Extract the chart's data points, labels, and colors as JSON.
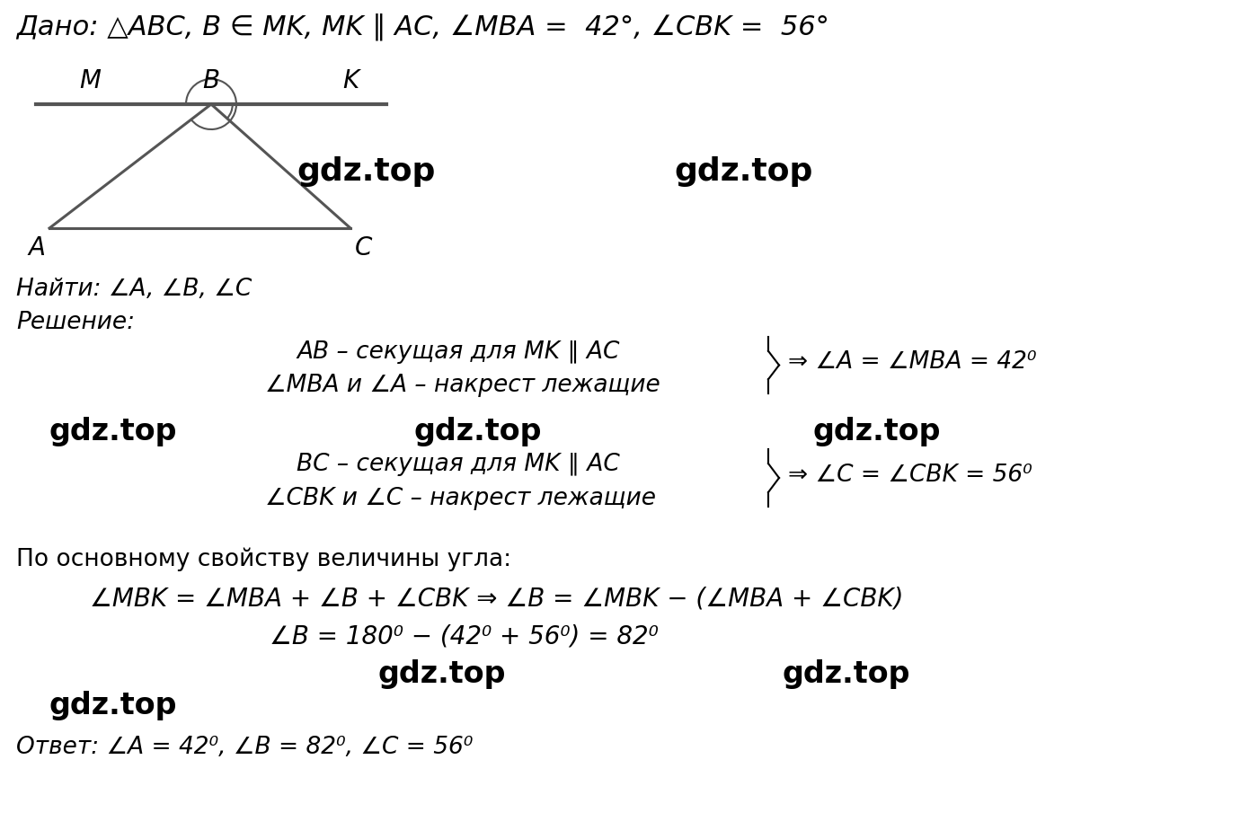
{
  "bg_color": "#ffffff",
  "title_dado": "Дано: △ABC, B ∈ MK, MK ∥ AC, ∠MBA =  42°, ∠CBK =  56°",
  "najti": "Найти: ∠A, ∠B, ∠C",
  "reshenie_label": "Решение:",
  "line1_part1": "AB – секущая для MK ∥ AC",
  "line1_part2": "∠MBA и ∠A – накрест лежащие",
  "line1_result": "⇒ ∠A = ∠MBA = 42⁰",
  "line2_part1": "BC – секущая для MK ∥ AC",
  "line2_part2": "∠CBK и ∠C – накрест лежащие",
  "line2_result": "⇒ ∠C = ∠CBK = 56⁰",
  "po_osnovnomu": "По основному свойству величины угла:",
  "formula1": "∠MBK = ∠MBA + ∠B + ∠CBK ⇒ ∠B = ∠MBK − (∠MBA + ∠CBK)",
  "formula2": "∠B = 180⁰ − (42⁰ + 56⁰) = 82⁰",
  "otvet": "Ответ: ∠A = 42⁰, ∠B = 82⁰, ∠C = 56⁰",
  "wm": "gdz.top",
  "font_main": 20,
  "font_text": 19,
  "font_formula": 20,
  "font_wm": 24
}
